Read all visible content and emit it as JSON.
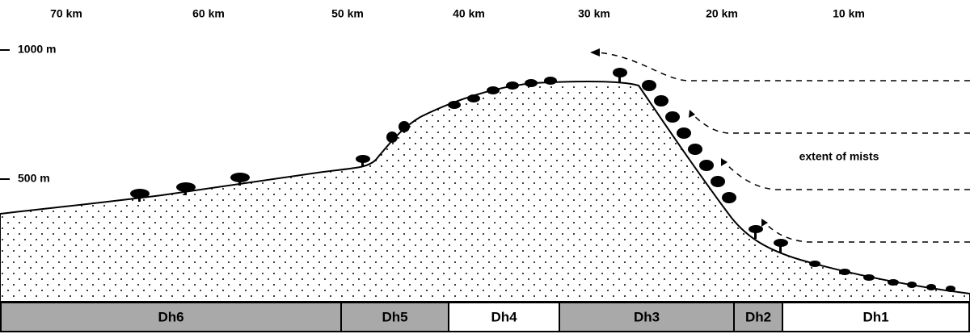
{
  "x_axis_labels": [
    "70 km",
    "60 km",
    "50 km",
    "40 km",
    "30 km",
    "20 km",
    "10 km"
  ],
  "y_axis_labels": [
    "1000 m",
    "500 m"
  ],
  "annotation": "extent of mists",
  "zones": [
    {
      "label": "Dh6",
      "shaded": true
    },
    {
      "label": "Dh5",
      "shaded": true
    },
    {
      "label": "Dh4",
      "shaded": false
    },
    {
      "label": "Dh3",
      "shaded": true
    },
    {
      "label": "Dh2",
      "shaded": true
    },
    {
      "label": "Dh1",
      "shaded": false
    }
  ]
}
